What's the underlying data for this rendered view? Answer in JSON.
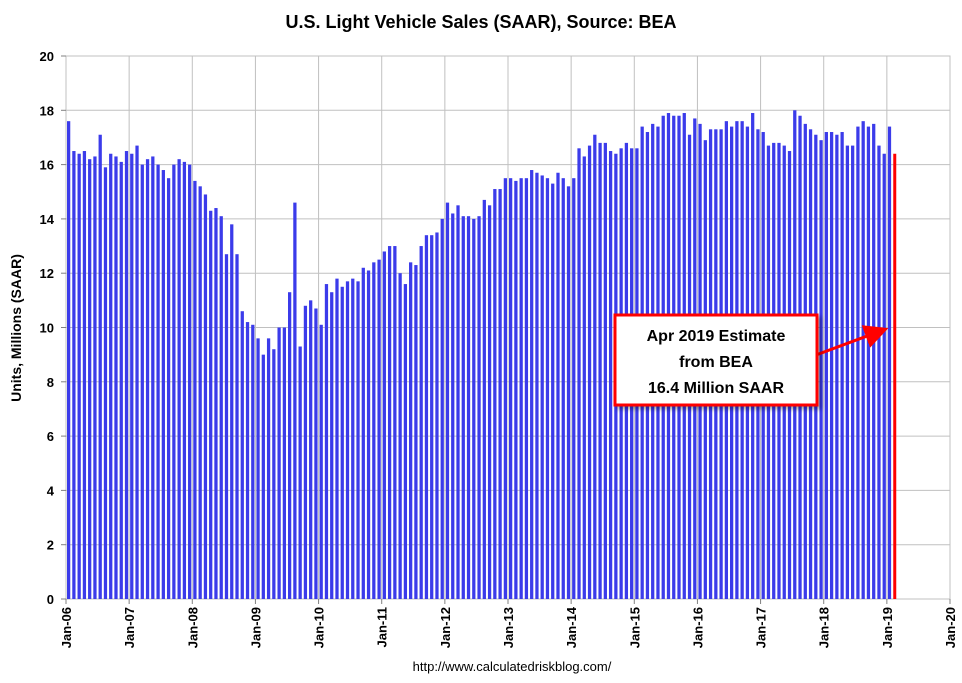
{
  "chart_data": {
    "type": "bar",
    "title": "U.S. Light Vehicle Sales (SAAR), Source: BEA",
    "xlabel": "",
    "ylabel": "Units, Millions (SAAR)",
    "ylim": [
      0,
      20
    ],
    "yticks": [
      0,
      2,
      4,
      6,
      8,
      10,
      12,
      14,
      16,
      18,
      20
    ],
    "grid": true,
    "source_url": "http://www.calculatedriskblog.com/",
    "colors": {
      "bar": "#3b3bea",
      "highlight": "#ff0000",
      "grid": "#c0c0c0"
    },
    "x_start": "Jan-06",
    "xtick_labels": [
      "Jan-06",
      "Jan-07",
      "Jan-08",
      "Jan-09",
      "Jan-10",
      "Jan-11",
      "Jan-12",
      "Jan-13",
      "Jan-14",
      "Jan-15",
      "Jan-16",
      "Jan-17",
      "Jan-18",
      "Jan-19",
      "Jan-20"
    ],
    "months_per_tick": 12,
    "total_months": 168,
    "values": [
      17.6,
      16.5,
      16.4,
      16.5,
      16.2,
      16.3,
      17.1,
      15.9,
      16.4,
      16.3,
      16.1,
      16.5,
      16.4,
      16.7,
      16.0,
      16.2,
      16.3,
      16.0,
      15.8,
      15.5,
      16.0,
      16.2,
      16.1,
      16.0,
      15.4,
      15.2,
      14.9,
      14.3,
      14.4,
      14.1,
      12.7,
      13.8,
      12.7,
      10.6,
      10.2,
      10.1,
      9.6,
      9.0,
      9.6,
      9.2,
      10.0,
      10.0,
      11.3,
      14.6,
      9.3,
      10.8,
      11.0,
      10.7,
      10.1,
      11.6,
      11.3,
      11.8,
      11.5,
      11.7,
      11.8,
      11.7,
      12.2,
      12.1,
      12.4,
      12.5,
      12.8,
      13.0,
      13.0,
      12.0,
      11.6,
      12.4,
      12.3,
      13.0,
      13.4,
      13.4,
      13.5,
      14.0,
      14.6,
      14.2,
      14.5,
      14.1,
      14.1,
      14.0,
      14.1,
      14.7,
      14.5,
      15.1,
      15.1,
      15.5,
      15.5,
      15.4,
      15.5,
      15.5,
      15.8,
      15.7,
      15.6,
      15.5,
      15.3,
      15.7,
      15.5,
      15.2,
      15.5,
      16.6,
      16.3,
      16.7,
      17.1,
      16.8,
      16.8,
      16.5,
      16.4,
      16.6,
      16.8,
      16.6,
      16.6,
      17.4,
      17.2,
      17.5,
      17.4,
      17.8,
      17.9,
      17.8,
      17.8,
      17.9,
      17.1,
      17.7,
      17.5,
      16.9,
      17.3,
      17.3,
      17.3,
      17.6,
      17.4,
      17.6,
      17.6,
      17.4,
      17.9,
      17.3,
      17.2,
      16.7,
      16.8,
      16.8,
      16.7,
      16.5,
      18.0,
      17.8,
      17.5,
      17.3,
      17.1,
      16.9,
      17.2,
      17.2,
      17.1,
      17.2,
      16.7,
      16.7,
      17.4,
      17.6,
      17.4,
      17.5,
      16.7,
      16.4,
      17.4,
      16.4
    ],
    "highlight": {
      "label": "Apr-19",
      "value": 16.4
    },
    "annotation": {
      "lines": [
        "Apr 2019 Estimate",
        "from BEA",
        "16.4 Million SAAR"
      ],
      "target": "Apr-19"
    }
  }
}
